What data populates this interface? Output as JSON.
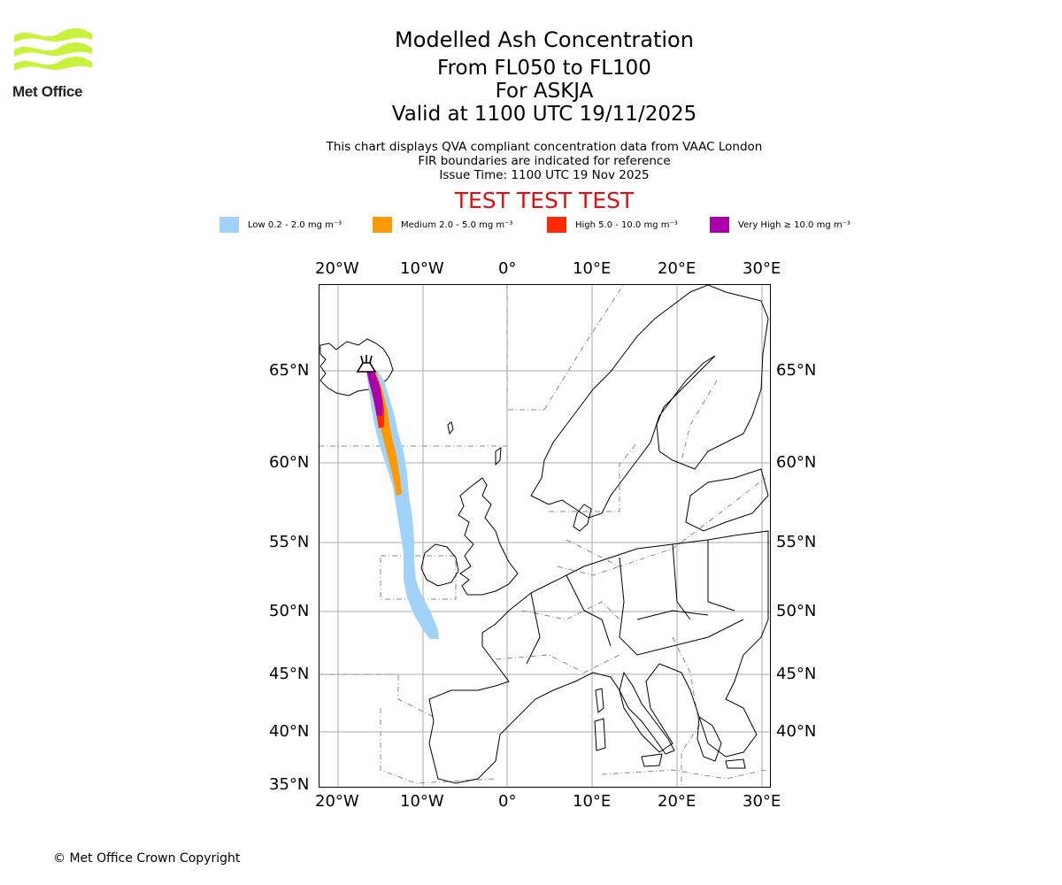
{
  "logo": {
    "text": "Met Office",
    "color": "#c8f23c"
  },
  "title": {
    "line1": "Modelled Ash Concentration",
    "line2": "From FL050 to FL100",
    "line3": "For ASKJA",
    "line4": "Valid at 1100 UTC 19/11/2025"
  },
  "subtitle": {
    "line1": "This chart displays QVA compliant concentration data from VAAC London",
    "line2": "FIR boundaries are indicated for reference",
    "line3": "Issue Time: 1100 UTC 19 Nov 2025"
  },
  "banner": "TEST TEST TEST",
  "legend": [
    {
      "label": "Low 0.2 - 2.0 mg m⁻³",
      "color": "#a0d2fa"
    },
    {
      "label": "Medium 2.0 - 5.0 mg m⁻³",
      "color": "#ff9900"
    },
    {
      "label": "High 5.0 - 10.0 mg m⁻³",
      "color": "#ff2a00"
    },
    {
      "label": "Very High ≥ 10.0 mg m⁻³",
      "color": "#aa00aa"
    }
  ],
  "axes": {
    "lon_labels": [
      "20°W",
      "10°W",
      "0°",
      "10°E",
      "20°E",
      "30°E"
    ],
    "lat_labels_left": [
      "65°N",
      "60°N",
      "55°N",
      "50°N",
      "45°N",
      "40°N",
      "35°N"
    ],
    "lat_labels_right": [
      "65°N",
      "60°N",
      "55°N",
      "50°N",
      "45°N",
      "40°N"
    ]
  },
  "volcano": {
    "name": "ASKJA"
  },
  "copyright": "© Met Office Crown Copyright"
}
